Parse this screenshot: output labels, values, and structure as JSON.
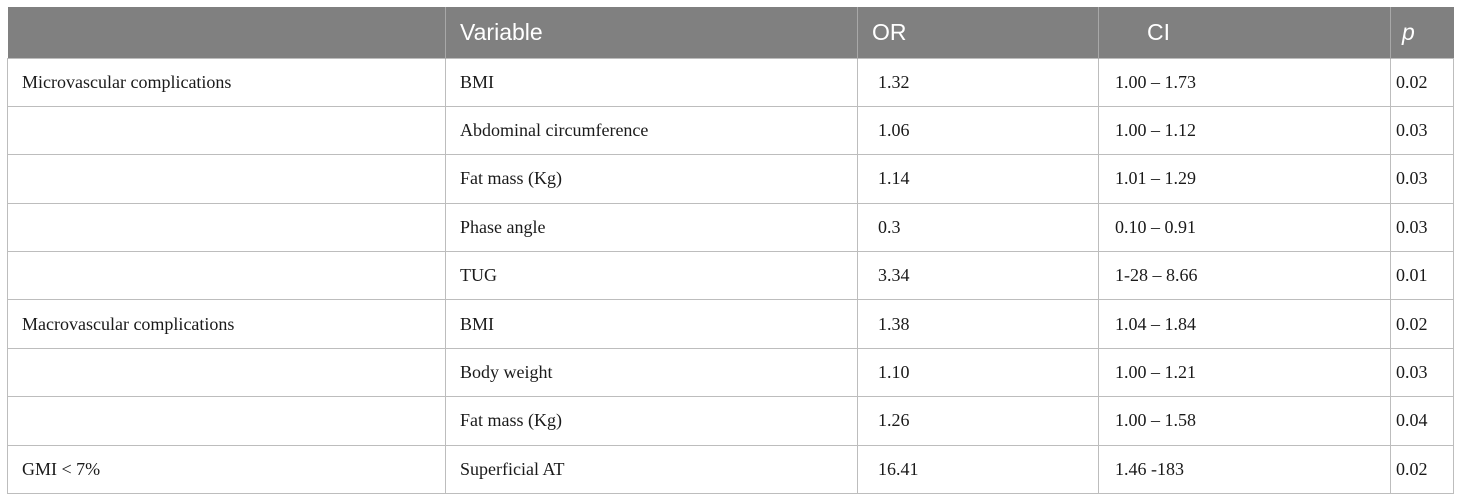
{
  "table": {
    "headers": [
      "",
      "Variable",
      "OR",
      "CI",
      "p"
    ],
    "rows": [
      [
        "Microvascular complications",
        "BMI",
        "1.32",
        "1.00 – 1.73",
        "0.02"
      ],
      [
        "",
        "Abdominal circumference",
        "1.06",
        "1.00 – 1.12",
        "0.03"
      ],
      [
        "",
        "Fat mass (Kg)",
        "1.14",
        "1.01 – 1.29",
        "0.03"
      ],
      [
        "",
        "Phase angle",
        " 0.3",
        "0.10 – 0.91",
        "0.03"
      ],
      [
        "",
        "TUG",
        "3.34",
        "1-28 – 8.66",
        "0.01"
      ],
      [
        "Macrovascular complications",
        "BMI",
        "1.38",
        "1.04 – 1.84",
        "0.02"
      ],
      [
        "",
        "Body weight",
        "1.10",
        "1.00 – 1.21",
        "0.03"
      ],
      [
        "",
        "Fat mass (Kg)",
        "1.26",
        "1.00 – 1.58",
        "0.04"
      ],
      [
        "GMI < 7%",
        "Superficial AT",
        "16.41",
        " 1.46 -183",
        "0.02"
      ]
    ]
  },
  "colors": {
    "header_bg": "#808080",
    "header_text": "#ffffff",
    "grid_line": "#bdbdbd"
  }
}
